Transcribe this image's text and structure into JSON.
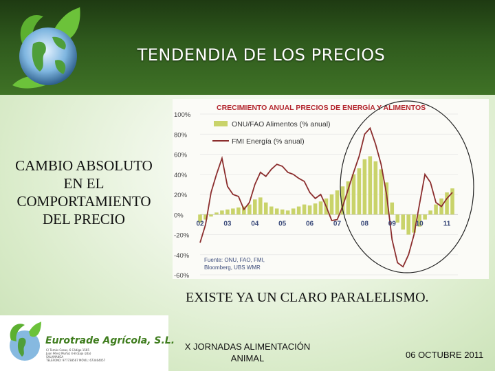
{
  "header": {
    "title": "TENDENDIA DE LOS PRECIOS"
  },
  "left_text": [
    "CAMBIO ABSOLUTO",
    "EN EL",
    "COMPORTAMIENTO",
    "DEL PRECIO"
  ],
  "conclusion": "EXISTE YA UN CLARO PARALELISMO.",
  "footer": {
    "company": "Eurotrade Agrícola, S.L.",
    "company_details": [
      "C/ Tomás Casas, 6 Código 1565",
      "Juan Pérez Muñoz 4-8 (bajo izda)",
      "SALAMANCA",
      "TELÉFONO: 977738567    MÓVIL: 673464057"
    ],
    "event_line1": "X JORNADAS ALIMENTACIÓN",
    "event_line2": "ANIMAL",
    "date": "06 OCTUBRE 2011"
  },
  "colors": {
    "header_green": "#2f5a1d",
    "food_bars": "#c9d36a",
    "energy_line": "#8b2d2d",
    "title_red": "#b3262e"
  },
  "chart_data": {
    "type": "bar+line",
    "title": "CRECIMIENTO ANUAL PRECIOS DE ENERGÍA Y ALIMENTOS",
    "source": [
      "Fuente: ONU, FAO, FMI,",
      "Bloomberg, UBS WMR"
    ],
    "legend": [
      "ONU/FAO  Alimentos (% anual)",
      "FMI Energía (% anual)"
    ],
    "y_ticks": [
      "100%",
      "80%",
      "60%",
      "40%",
      "20%",
      "0%",
      "-20%",
      "-40%",
      "-60%"
    ],
    "x_ticks": [
      "02",
      "03",
      "04",
      "05",
      "06",
      "07",
      "08",
      "09",
      "10",
      "11"
    ],
    "ylim": [
      -60,
      100
    ],
    "xlim": [
      2002,
      2011.4
    ],
    "series": [
      {
        "name": "ONU/FAO  Alimentos (% anual)",
        "kind": "bar",
        "x": [
          2002.0,
          2002.2,
          2002.4,
          2002.6,
          2002.8,
          2003.0,
          2003.2,
          2003.4,
          2003.6,
          2003.8,
          2004.0,
          2004.2,
          2004.4,
          2004.6,
          2004.8,
          2005.0,
          2005.2,
          2005.4,
          2005.6,
          2005.8,
          2006.0,
          2006.2,
          2006.4,
          2006.6,
          2006.8,
          2007.0,
          2007.2,
          2007.4,
          2007.6,
          2007.8,
          2008.0,
          2008.2,
          2008.4,
          2008.6,
          2008.8,
          2009.0,
          2009.2,
          2009.4,
          2009.6,
          2009.8,
          2010.0,
          2010.2,
          2010.4,
          2010.6,
          2010.8,
          2011.0,
          2011.2
        ],
        "values": [
          -8,
          -5,
          -2,
          2,
          4,
          5,
          6,
          7,
          8,
          10,
          15,
          17,
          12,
          8,
          6,
          5,
          4,
          6,
          8,
          10,
          9,
          11,
          13,
          16,
          20,
          24,
          28,
          33,
          40,
          46,
          55,
          58,
          53,
          45,
          32,
          12,
          -8,
          -15,
          -20,
          -18,
          -12,
          -5,
          4,
          10,
          16,
          22,
          26
        ]
      },
      {
        "name": "FMI Energía (% anual)",
        "kind": "line",
        "x": [
          2002.0,
          2002.2,
          2002.4,
          2002.6,
          2002.8,
          2003.0,
          2003.2,
          2003.4,
          2003.6,
          2003.8,
          2004.0,
          2004.2,
          2004.4,
          2004.6,
          2004.8,
          2005.0,
          2005.2,
          2005.4,
          2005.6,
          2005.8,
          2006.0,
          2006.2,
          2006.4,
          2006.6,
          2006.8,
          2007.0,
          2007.2,
          2007.4,
          2007.6,
          2007.8,
          2008.0,
          2008.2,
          2008.4,
          2008.6,
          2008.8,
          2009.0,
          2009.2,
          2009.4,
          2009.6,
          2009.8,
          2010.0,
          2010.2,
          2010.4,
          2010.6,
          2010.8,
          2011.0,
          2011.2
        ],
        "values": [
          -28,
          -10,
          22,
          40,
          56,
          28,
          20,
          18,
          5,
          12,
          30,
          42,
          38,
          45,
          50,
          48,
          42,
          40,
          36,
          33,
          22,
          16,
          20,
          8,
          -6,
          -5,
          8,
          25,
          42,
          58,
          80,
          86,
          70,
          50,
          20,
          -25,
          -48,
          -52,
          -40,
          -20,
          10,
          40,
          32,
          12,
          8,
          16,
          22
        ]
      }
    ],
    "annotation": "circle highlighting 2007-2011"
  }
}
